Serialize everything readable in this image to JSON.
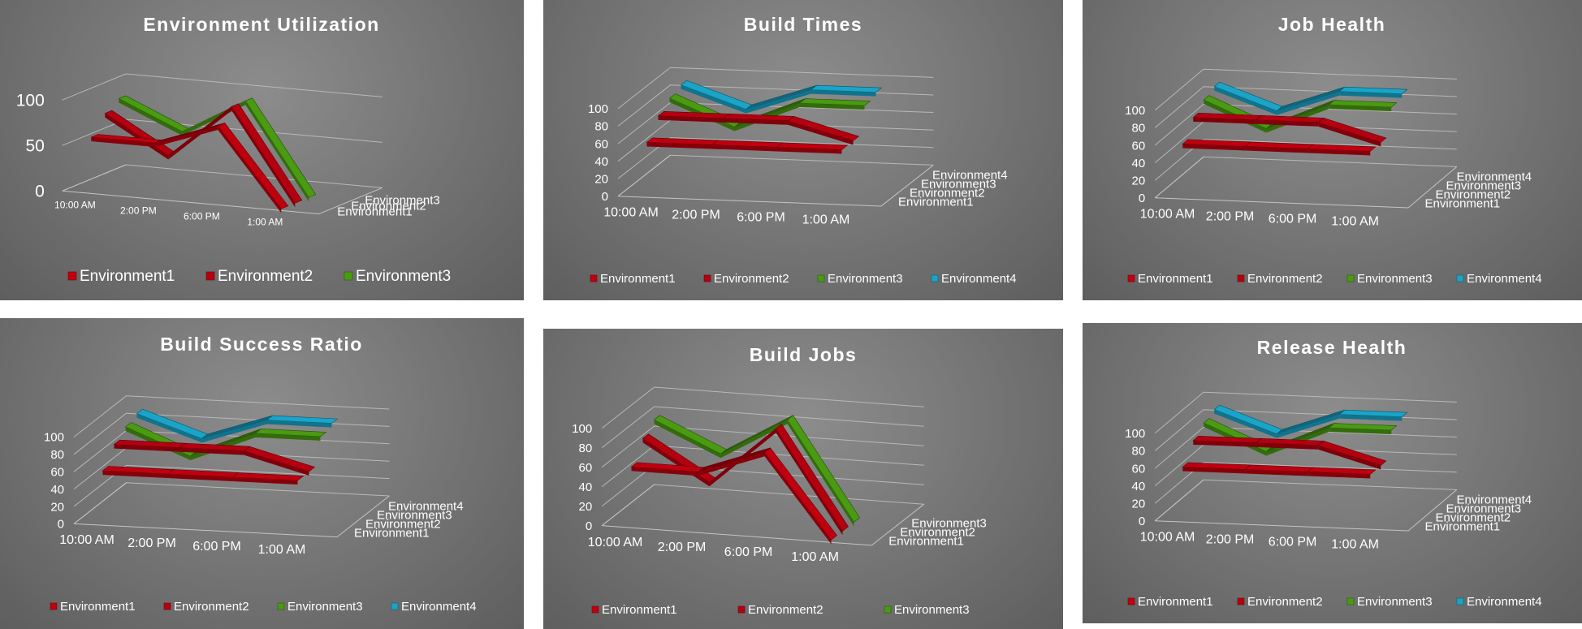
{
  "colors": {
    "Environment1": "#c0000f",
    "Environment2": "#b50010",
    "Environment3": "#4a9a12",
    "Environment4": "#1aa4c8"
  },
  "chart_data": [
    {
      "id": "env-util",
      "type": "line",
      "style": "3d",
      "title": "Environment Utilization",
      "categories": [
        "10:00 AM",
        "2:00 PM",
        "6:00 PM",
        "1:00 AM"
      ],
      "y_ticks": [
        "0",
        "50",
        "100"
      ],
      "ylim": [
        0,
        100
      ],
      "legend": "bottom",
      "series": [
        {
          "name": "Environment1",
          "values": [
            60,
            60,
            85,
            0
          ]
        },
        {
          "name": "Environment2",
          "values": [
            80,
            40,
            100,
            0
          ]
        },
        {
          "name": "Environment3",
          "values": [
            90,
            60,
            100,
            0
          ]
        }
      ]
    },
    {
      "id": "build-times",
      "type": "line",
      "style": "3d",
      "title": "Build Times",
      "categories": [
        "10:00 AM",
        "2:00 PM",
        "6:00 PM",
        "1:00 AM"
      ],
      "y_ticks": [
        "0",
        "20",
        "40",
        "60",
        "80",
        "100"
      ],
      "ylim": [
        0,
        100
      ],
      "legend": "bottom",
      "series": [
        {
          "name": "Environment1",
          "values": [
            60,
            60,
            60,
            60
          ]
        },
        {
          "name": "Environment2",
          "values": [
            80,
            80,
            80,
            60
          ]
        },
        {
          "name": "Environment3",
          "values": [
            90,
            60,
            90,
            90
          ]
        },
        {
          "name": "Environment4",
          "values": [
            95,
            70,
            95,
            95
          ]
        }
      ]
    },
    {
      "id": "job-health",
      "type": "line",
      "style": "3d",
      "title": "Job Health",
      "categories": [
        "10:00 AM",
        "2:00 PM",
        "6:00 PM",
        "1:00 AM"
      ],
      "y_ticks": [
        "0",
        "20",
        "40",
        "60",
        "80",
        "100"
      ],
      "ylim": [
        0,
        100
      ],
      "legend": "bottom",
      "series": [
        {
          "name": "Environment1",
          "values": [
            60,
            60,
            60,
            60
          ]
        },
        {
          "name": "Environment2",
          "values": [
            80,
            80,
            80,
            60
          ]
        },
        {
          "name": "Environment3",
          "values": [
            90,
            60,
            90,
            90
          ]
        },
        {
          "name": "Environment4",
          "values": [
            95,
            70,
            95,
            95
          ]
        }
      ]
    },
    {
      "id": "build-success",
      "type": "line",
      "style": "3d",
      "title": "Build Success Ratio",
      "categories": [
        "10:00 AM",
        "2:00 PM",
        "6:00 PM",
        "1:00 AM"
      ],
      "y_ticks": [
        "0",
        "20",
        "40",
        "60",
        "80",
        "100"
      ],
      "ylim": [
        0,
        100
      ],
      "legend": "bottom",
      "series": [
        {
          "name": "Environment1",
          "values": [
            60,
            60,
            60,
            60
          ]
        },
        {
          "name": "Environment2",
          "values": [
            80,
            80,
            80,
            60
          ]
        },
        {
          "name": "Environment3",
          "values": [
            90,
            60,
            90,
            90
          ]
        },
        {
          "name": "Environment4",
          "values": [
            95,
            70,
            95,
            95
          ]
        }
      ]
    },
    {
      "id": "build-jobs",
      "type": "line",
      "style": "3d",
      "title": "Build Jobs",
      "categories": [
        "10:00 AM",
        "2:00 PM",
        "6:00 PM",
        "1:00 AM"
      ],
      "y_ticks": [
        "0",
        "20",
        "40",
        "60",
        "80",
        "100"
      ],
      "ylim": [
        0,
        100
      ],
      "legend": "bottom",
      "series": [
        {
          "name": "Environment1",
          "values": [
            60,
            60,
            85,
            0
          ]
        },
        {
          "name": "Environment2",
          "values": [
            80,
            40,
            100,
            0
          ]
        },
        {
          "name": "Environment3",
          "values": [
            90,
            60,
            100,
            0
          ]
        }
      ]
    },
    {
      "id": "release-health",
      "type": "line",
      "style": "3d",
      "title": "Release Health",
      "categories": [
        "10:00 AM",
        "2:00 PM",
        "6:00 PM",
        "1:00 AM"
      ],
      "y_ticks": [
        "0",
        "20",
        "40",
        "60",
        "80",
        "100"
      ],
      "ylim": [
        0,
        100
      ],
      "legend": "bottom",
      "series": [
        {
          "name": "Environment1",
          "values": [
            60,
            60,
            60,
            60
          ]
        },
        {
          "name": "Environment2",
          "values": [
            80,
            80,
            80,
            60
          ]
        },
        {
          "name": "Environment3",
          "values": [
            90,
            60,
            90,
            90
          ]
        },
        {
          "name": "Environment4",
          "values": [
            95,
            70,
            95,
            95
          ]
        }
      ]
    }
  ]
}
